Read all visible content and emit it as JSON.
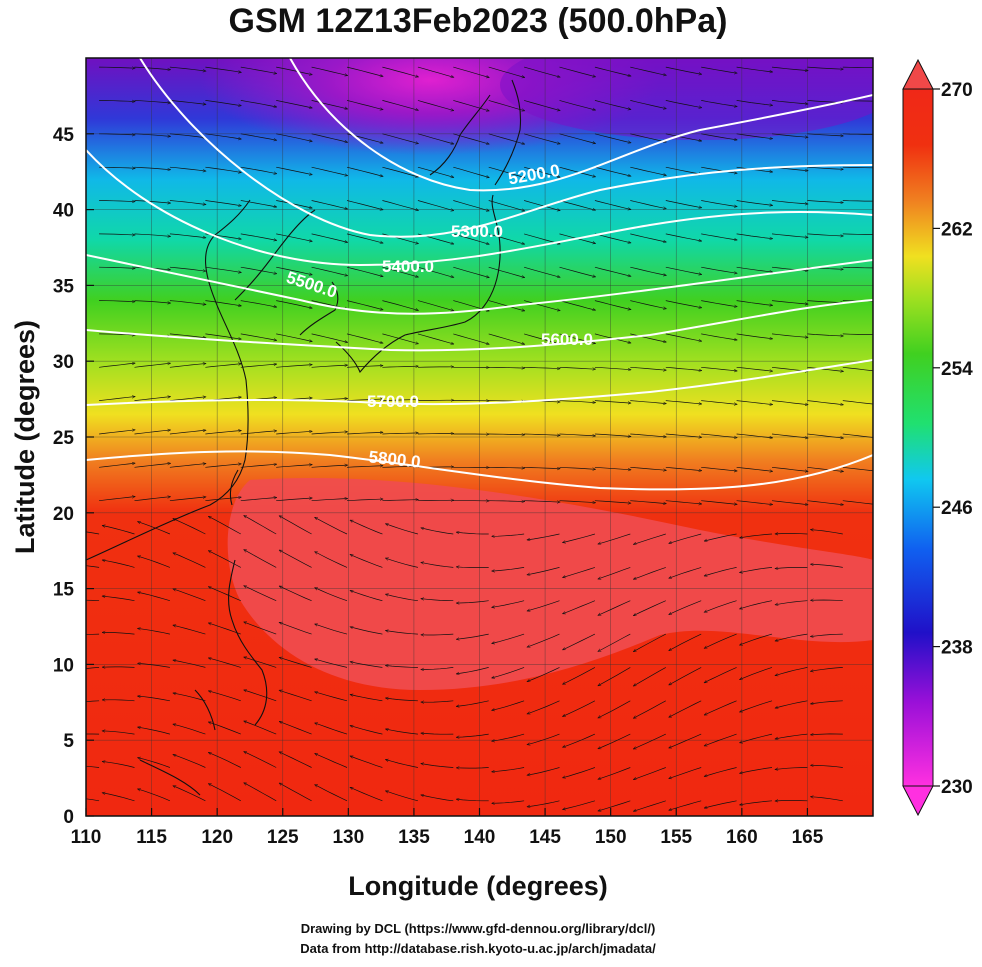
{
  "title": "GSM 12Z13Feb2023 (500.0hPa)",
  "x_axis": {
    "label": "Longitude (degrees)",
    "range": [
      110,
      170
    ],
    "ticks": [
      "110",
      "115",
      "120",
      "125",
      "130",
      "135",
      "140",
      "145",
      "150",
      "155",
      "160",
      "165"
    ]
  },
  "y_axis": {
    "label": "Latitude  (degrees)",
    "range": [
      0,
      50
    ],
    "ticks": [
      "0",
      "5",
      "10",
      "15",
      "20",
      "25",
      "30",
      "35",
      "40",
      "45"
    ]
  },
  "colorbar": {
    "range": [
      230,
      270
    ],
    "ticks": [
      "230",
      "238",
      "246",
      "254",
      "262",
      "270"
    ],
    "colors": [
      "#ff30e0",
      "#9a10d8",
      "#2010c8",
      "#1060f0",
      "#10c8f0",
      "#20e070",
      "#40d020",
      "#a0e020",
      "#f0e020",
      "#f08020",
      "#f03010",
      "#f04848"
    ]
  },
  "contours": [
    {
      "label": "5200.0"
    },
    {
      "label": "5300.0"
    },
    {
      "label": "5400.0"
    },
    {
      "label": "5500.0"
    },
    {
      "label": "5600.0"
    },
    {
      "label": "5700.0"
    },
    {
      "label": "5800.0"
    }
  ],
  "credits": {
    "line1": "Drawing by DCL (https://www.gfd-dennou.org/library/dcl/)",
    "line2": "Data from http://database.rish.kyoto-u.ac.jp/arch/jmadata/"
  }
}
